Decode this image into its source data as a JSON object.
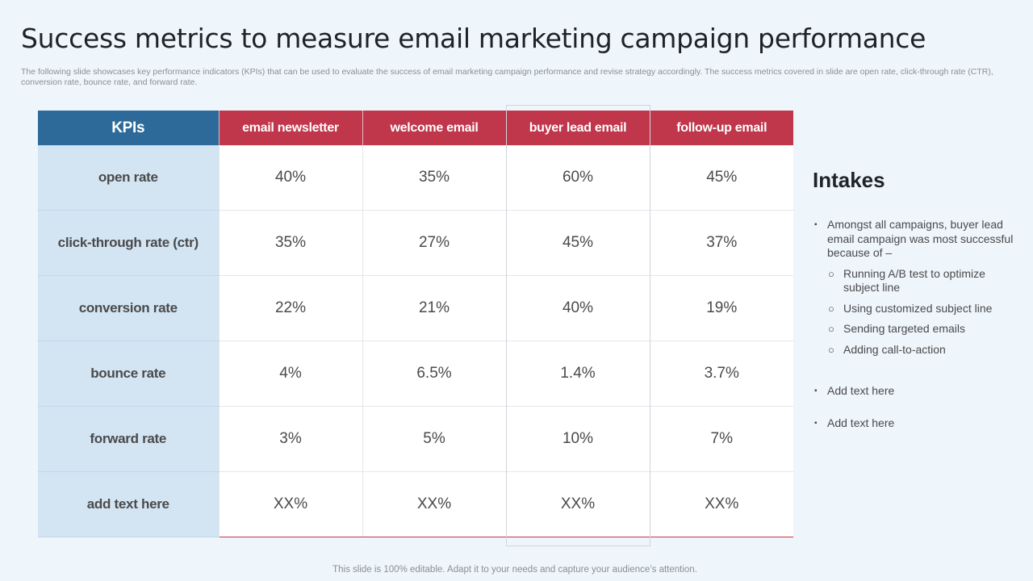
{
  "title": "Success metrics to measure email marketing campaign performance",
  "subtitle": "The following slide showcases key performance indicators (KPIs) that can be used to evaluate the success of email marketing campaign performance and revise strategy accordingly. The success metrics covered in slide are open rate, click-through rate (CTR), conversion rate, bounce rate, and forward rate.",
  "table": {
    "kpi_header": "KPIs",
    "campaigns": [
      "email newsletter",
      "welcome email",
      "buyer lead email",
      "follow-up email"
    ],
    "rows": [
      {
        "kpi": "open rate",
        "values": [
          "40%",
          "35%",
          "60%",
          "45%"
        ]
      },
      {
        "kpi": "click-through rate (ctr)",
        "values": [
          "35%",
          "27%",
          "45%",
          "37%"
        ]
      },
      {
        "kpi": "conversion rate",
        "values": [
          "22%",
          "21%",
          "40%",
          "19%"
        ]
      },
      {
        "kpi": "bounce rate",
        "values": [
          "4%",
          "6.5%",
          "1.4%",
          "3.7%"
        ]
      },
      {
        "kpi": "forward rate",
        "values": [
          "3%",
          "5%",
          "10%",
          "7%"
        ]
      },
      {
        "kpi": "add text here",
        "values": [
          "XX%",
          "XX%",
          "XX%",
          "XX%"
        ]
      }
    ]
  },
  "intakes": {
    "title": "Intakes",
    "main_point": "Amongst all campaigns, buyer lead email campaign was most successful because of –",
    "reasons": [
      "Running A/B test to optimize subject line",
      "Using customized subject line",
      "Sending targeted emails",
      "Adding call-to-action"
    ],
    "extra_points": [
      "Add text here",
      "Add text here"
    ]
  },
  "footer": "This slide is 100% editable. Adapt it to your needs and capture your audience’s attention.",
  "colors": {
    "kpi_header": "#2d6a9a",
    "campaign_header": "#c0364a",
    "kpi_column": "#d3e4f3",
    "background": "#eef5fb"
  }
}
